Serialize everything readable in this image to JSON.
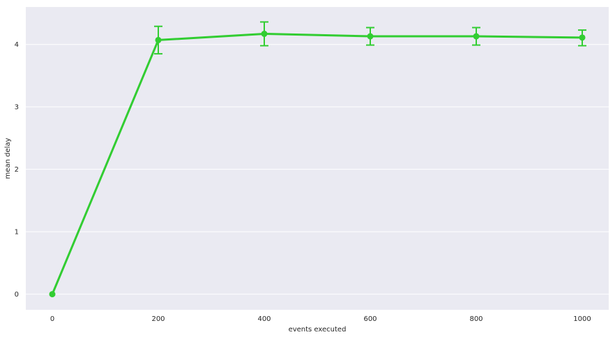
{
  "chart_data": {
    "type": "line",
    "title": "",
    "xlabel": "events executed",
    "ylabel": "mean delay",
    "x": [
      0,
      200,
      400,
      600,
      800,
      1000
    ],
    "x_tick_labels": [
      "0",
      "200",
      "400",
      "600",
      "800",
      "1000"
    ],
    "y_ticks": [
      0,
      1,
      2,
      3,
      4
    ],
    "y_tick_labels": [
      "0",
      "1",
      "2",
      "3",
      "4"
    ],
    "xlim": [
      -50,
      1050
    ],
    "ylim": [
      -0.25,
      4.6
    ],
    "grid": true,
    "background": "#eaeaf2",
    "series": [
      {
        "color": "#32cd32",
        "values": [
          0.0,
          4.07,
          4.17,
          4.13,
          4.13,
          4.11
        ],
        "error_low": [
          0.0,
          3.85,
          3.98,
          3.99,
          3.99,
          3.98
        ],
        "error_high": [
          0.0,
          4.29,
          4.36,
          4.27,
          4.27,
          4.23
        ]
      }
    ]
  }
}
